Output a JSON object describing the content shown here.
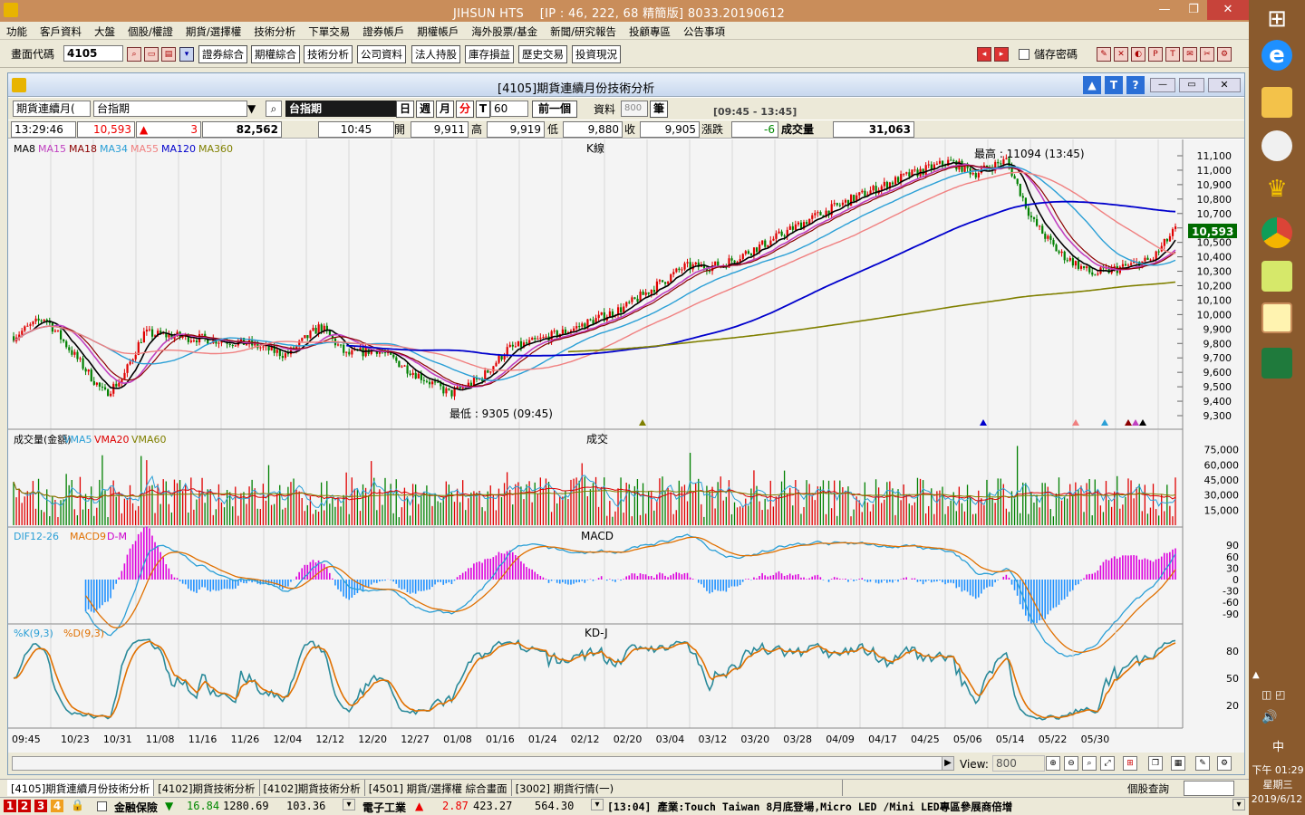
{
  "window": {
    "title": "JIHSUN HTS",
    "server": "[IP : 46, 222, 68 精簡版] 8033.20190612",
    "min": "—",
    "restore": "❐",
    "close": "✕"
  },
  "menu": [
    "功能",
    "客戶資料",
    "大盤",
    "個股/權證",
    "期貨/選擇權",
    "技術分析",
    "下單交易",
    "證券帳戶",
    "期權帳戶",
    "海外股票/基金",
    "新聞/研究報告",
    "投顧專區",
    "公告事項"
  ],
  "toolbar": {
    "code_label": "畫面代碼",
    "code_value": "4105",
    "buttons": [
      "證券綜合",
      "期權綜合",
      "技術分析",
      "公司資料",
      "法人持股",
      "庫存損益",
      "歷史交易",
      "投資現況"
    ],
    "save_pwd": "儲存密碼"
  },
  "inner": {
    "title": "[4105]期貨連續月份技術分析"
  },
  "ctrl": {
    "product_type": "期貨連續月(",
    "symbol": "台指期",
    "symbol_name": "台指期",
    "periods": [
      "日",
      "週",
      "月",
      "分",
      "T"
    ],
    "minutes": "60",
    "prev": "前一個",
    "data_label": "資料",
    "data_count": "800",
    "unit": "筆",
    "session": "[09:45 - 13:45]"
  },
  "quote": {
    "time": "13:29:46",
    "price": "10,593",
    "change": "3",
    "volume_total": "82,562",
    "bar_time": "10:45",
    "open_label": "開",
    "open": "9,911",
    "high_label": "高",
    "high": "9,919",
    "low_label": "低",
    "low": "9,880",
    "close_label": "收",
    "close": "9,905",
    "chg_label": "漲跌",
    "chg": "-6",
    "vol_label": "成交量",
    "vol": "31,063"
  },
  "panels": {
    "k": {
      "title": "K線",
      "legend": [
        {
          "t": "MA8",
          "c": "#000000"
        },
        {
          "t": "MA15",
          "c": "#c040c0"
        },
        {
          "t": "MA18",
          "c": "#8b0000"
        },
        {
          "t": "MA34",
          "c": "#2a9fd6"
        },
        {
          "t": "MA55",
          "c": "#f08080"
        },
        {
          "t": "MA120",
          "c": "#0000cc"
        },
        {
          "t": "MA360",
          "c": "#808000"
        }
      ],
      "high_note": "最高 : 11094 (13:45)",
      "low_note": "最低 : 9305 (09:45)",
      "last": "10,593"
    },
    "vol": {
      "title": "成交",
      "legend": [
        {
          "t": "成交量(金額)",
          "c": "#000000"
        },
        {
          "t": "VMA5",
          "c": "#2a9fd6"
        },
        {
          "t": "VMA20",
          "c": "#dd0000"
        },
        {
          "t": "VMA60",
          "c": "#808000"
        }
      ]
    },
    "macd": {
      "title": "MACD",
      "legend": [
        {
          "t": "DIF12-26",
          "c": "#2a9fd6"
        },
        {
          "t": "MACD9",
          "c": "#e07000"
        },
        {
          "t": "D-M",
          "c": "#cc00cc"
        }
      ]
    },
    "kd": {
      "title": "KD-J",
      "legend": [
        {
          "t": "%K(9,3)",
          "c": "#2a9fd6"
        },
        {
          "t": "%D(9,3)",
          "c": "#e07000"
        }
      ]
    }
  },
  "x_labels": [
    "09:45",
    "10/23",
    "10/31",
    "11/08",
    "11/16",
    "11/26",
    "12/04",
    "12/12",
    "12/20",
    "12/27",
    "01/08",
    "01/16",
    "01/24",
    "02/12",
    "02/20",
    "03/04",
    "03/12",
    "03/20",
    "03/28",
    "04/09",
    "04/17",
    "04/25",
    "05/06",
    "05/14",
    "05/22",
    "05/30"
  ],
  "view": {
    "label": "View:",
    "value": "800"
  },
  "tabs": [
    "[4105]期貨連續月份技術分析",
    "[4102]期貨技術分析",
    "[4102]期貨技術分析",
    "[4501] 期貨/選擇權 綜合畫面",
    "[3002] 期貨行情(一)"
  ],
  "tab_right": "個股查詢",
  "status": {
    "nums": [
      "1",
      "2",
      "3",
      "4"
    ],
    "s1_name": "金融保險",
    "s1_chg": "16.84",
    "s1_idx": "1280.69",
    "s1_vol": "103.36",
    "s2_name": "電子工業",
    "s2_chg": "2.87",
    "s2_idx": "423.27",
    "s2_vol": "564.30",
    "news": "[13:04] 產業:Touch Taiwan 8月底登場,Micro LED /Mini LED專區參展商倍增"
  },
  "taskbar": {
    "ime": "中",
    "time": "下午 01:29",
    "weekday": "星期三",
    "date": "2019/6/12"
  },
  "chart_data": [
    {
      "type": "line",
      "title": "K線",
      "ylim": [
        9300,
        11100
      ],
      "y_ticks": [
        11100,
        11000,
        10900,
        10800,
        10700,
        10600,
        10500,
        10400,
        10300,
        10200,
        10100,
        10000,
        9900,
        9800,
        9700,
        9600,
        9500,
        9400,
        9300
      ],
      "annotations": [
        "最高 : 11094 (13:45)",
        "最低 : 9305 (09:45)"
      ],
      "last": 10593
    },
    {
      "type": "bar",
      "title": "成交",
      "y_ticks": [
        75000,
        60000,
        45000,
        30000,
        15000
      ]
    },
    {
      "type": "bar",
      "title": "MACD",
      "y_ticks": [
        90,
        60,
        30,
        0,
        -30,
        -60,
        -90
      ]
    },
    {
      "type": "line",
      "title": "KD-J",
      "y_ticks": [
        80,
        50,
        20
      ]
    }
  ]
}
